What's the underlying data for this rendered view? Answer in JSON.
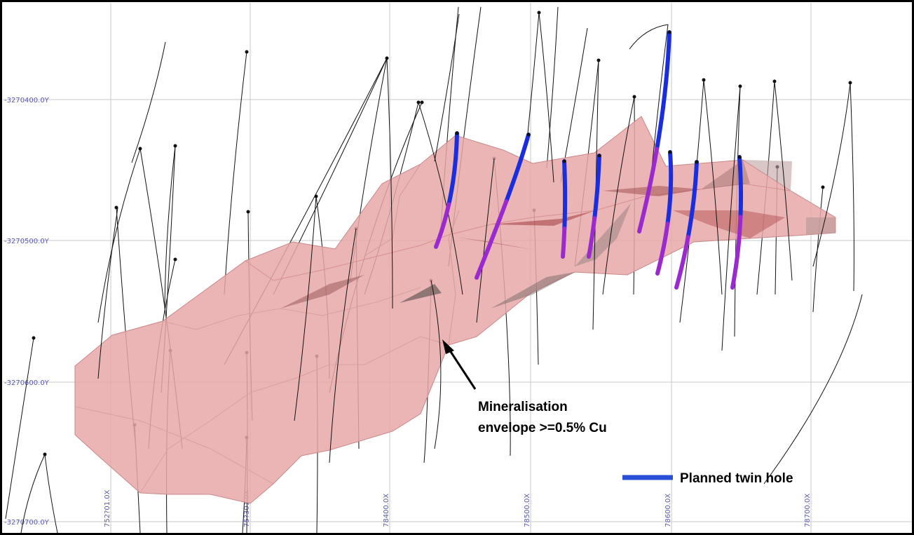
{
  "colors": {
    "grid": "#c8c8c8",
    "grid_label": "#5a5aaa",
    "envelope_fill": "#e8a8a8",
    "envelope_edge": "#c88888",
    "drill_trace": "#111111",
    "twin_hole": "#1a2ee0",
    "twin_hole_inside": "#9a2ad0",
    "annotation_text": "#000000",
    "legend_swatch": "#2a4fd6"
  },
  "grid": {
    "y_labels": [
      "-3270400.0Y",
      "-3270500.0Y",
      "-3270600.0Y",
      "-3270700.0Y"
    ],
    "x_labels": [
      "752?01.0X",
      "75?301.0X",
      "78400.0X",
      "78500.0X",
      "78600.0X",
      "78700.0X"
    ]
  },
  "annotation": {
    "line1": "Mineralisation",
    "line2": "envelope >=0.5% Cu"
  },
  "legend": {
    "label": "Planned twin hole",
    "icon": "thick-blue-line"
  }
}
